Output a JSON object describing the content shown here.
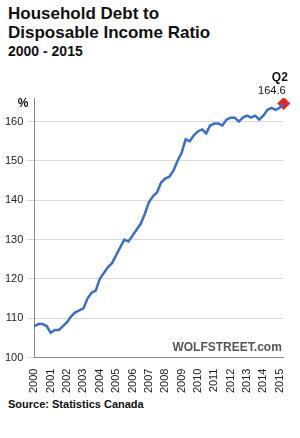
{
  "chart_data": {
    "type": "line",
    "title": "Household Debt to Disposable Income Ratio",
    "subtitle": "2000 - 2015",
    "y_label": "%",
    "watermark": "WOLFSTREET.com",
    "source": "Source: Statistics Canada",
    "categories": [
      "2000",
      null,
      null,
      null,
      "2001",
      null,
      null,
      null,
      "2002",
      null,
      null,
      null,
      "2003",
      null,
      null,
      null,
      "2004",
      null,
      null,
      null,
      "2005",
      null,
      null,
      null,
      "2006",
      null,
      null,
      null,
      "2007",
      null,
      null,
      null,
      "2008",
      null,
      null,
      null,
      "2009",
      null,
      null,
      null,
      "2010",
      null,
      null,
      null,
      "2011",
      null,
      null,
      null,
      "2012",
      null,
      null,
      null,
      "2013",
      null,
      null,
      null,
      "2014",
      null,
      null,
      null,
      "2015",
      null
    ],
    "values": [
      108,
      108.5,
      108.5,
      108,
      106.3,
      107,
      107,
      108,
      109,
      110.5,
      111.5,
      112,
      112.5,
      115,
      116.5,
      117,
      120,
      121.5,
      123,
      124,
      126,
      128,
      130,
      129.5,
      131,
      132.5,
      134,
      136.5,
      139.5,
      141,
      142,
      144.5,
      145.5,
      146,
      147.5,
      150,
      152,
      155.5,
      155,
      156.5,
      157.5,
      158,
      157,
      159,
      159.5,
      159.5,
      159,
      160.5,
      161,
      161,
      160,
      161,
      161.5,
      161,
      161.5,
      160.5,
      161.5,
      163,
      163.5,
      163,
      163.5,
      164.6
    ],
    "color": "#3a6fc4",
    "ylim": [
      100,
      166
    ],
    "yticks": [
      100,
      110,
      120,
      130,
      140,
      150,
      160
    ],
    "grid": true,
    "annotations": [
      {
        "text": "Q2",
        "value": 164.6,
        "color": "#e8261f",
        "marker": "diamond"
      }
    ]
  }
}
